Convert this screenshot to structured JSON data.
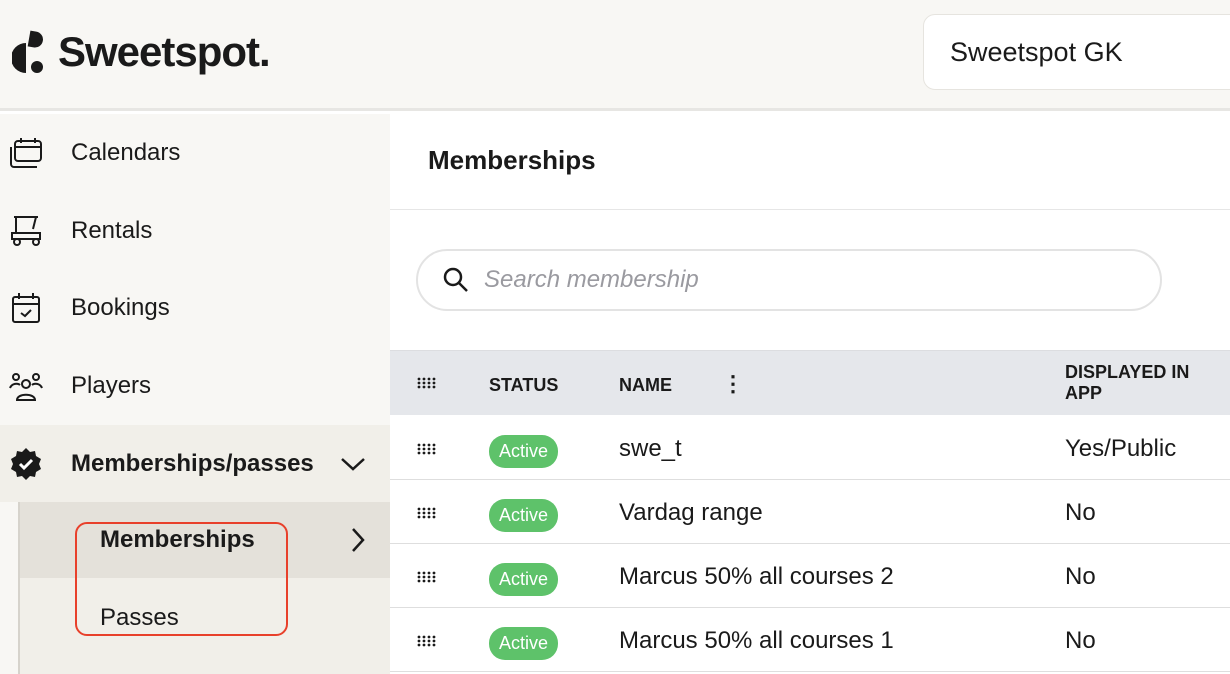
{
  "header": {
    "logo_text": "Sweetspot.",
    "workspace": "Sweetspot GK"
  },
  "sidebar": {
    "items": [
      {
        "label": "Calendars",
        "icon": "calendars-icon"
      },
      {
        "label": "Rentals",
        "icon": "golf-cart-icon"
      },
      {
        "label": "Bookings",
        "icon": "calendar-check-icon"
      },
      {
        "label": "Players",
        "icon": "users-icon"
      },
      {
        "label": "Memberships/passes",
        "icon": "verified-badge-icon"
      }
    ],
    "subitems": [
      {
        "label": "Memberships"
      },
      {
        "label": "Passes"
      }
    ]
  },
  "main": {
    "title": "Memberships",
    "search": {
      "placeholder": "Search membership",
      "value": ""
    },
    "table": {
      "columns": [
        "STATUS",
        "NAME",
        "DISPLAYED IN APP"
      ],
      "rows": [
        {
          "status": "Active",
          "name": "swe_t",
          "displayed": "Yes/Public"
        },
        {
          "status": "Active",
          "name": "Vardag range",
          "displayed": "No"
        },
        {
          "status": "Active",
          "name": "Marcus 50% all courses 2",
          "displayed": "No"
        },
        {
          "status": "Active",
          "name": "Marcus 50% all courses 1",
          "displayed": "No"
        }
      ]
    }
  },
  "colors": {
    "active_badge": "#5ec26a",
    "highlight": "#e8402b"
  }
}
